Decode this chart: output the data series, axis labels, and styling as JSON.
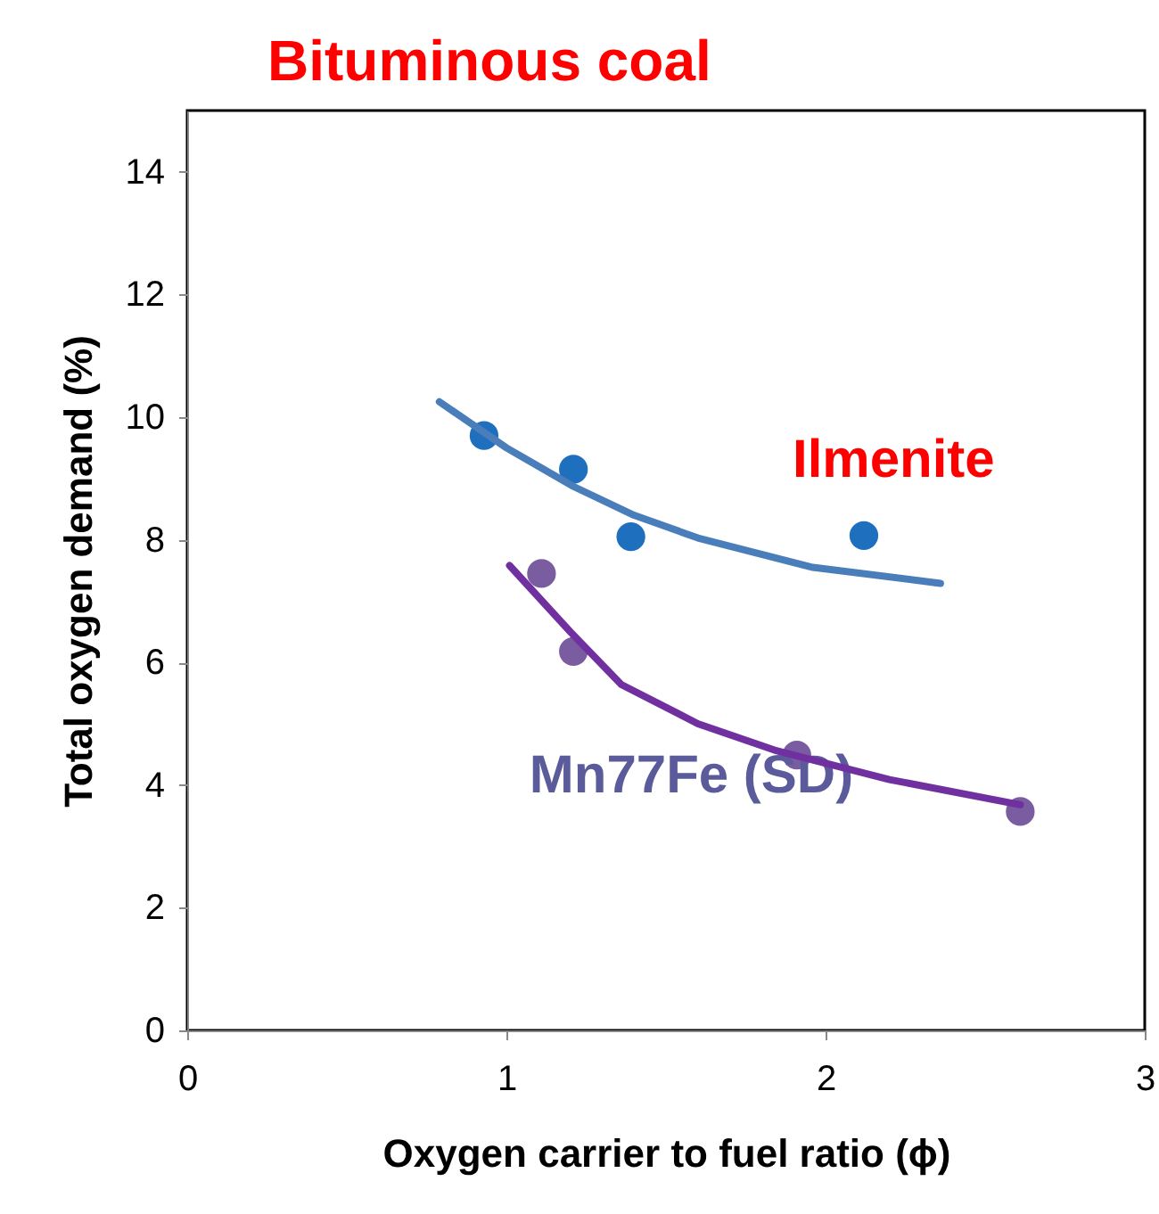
{
  "chart_data": {
    "type": "scatter",
    "title": "Bituminous coal",
    "xlabel": "Oxygen carrier to fuel ratio (ϕ)",
    "ylabel": "Total oxygen demand (%)",
    "series": [
      {
        "name": "Ilmenite",
        "color": "#1f6fbf",
        "x": [
          0.93,
          1.21,
          1.39,
          2.12
        ],
        "values": [
          9.7,
          9.15,
          8.05,
          8.07
        ]
      },
      {
        "name": "Mn77Fe (SD)",
        "color": "#7a5ca0",
        "x": [
          1.11,
          1.21,
          1.91,
          2.61
        ],
        "values": [
          7.45,
          6.18,
          4.49,
          3.57
        ]
      },
      {
        "type": "line",
        "marker": "none",
        "color": "#4a7ebb",
        "x": [
          0.79,
          1.0,
          1.21,
          1.4,
          1.6,
          1.96,
          2.36
        ],
        "values": [
          10.25,
          9.5,
          8.87,
          8.4,
          8.03,
          7.55,
          7.29
        ]
      },
      {
        "type": "line",
        "marker": "none",
        "color": "#7030a0",
        "x": [
          1.01,
          1.2,
          1.36,
          1.6,
          1.84,
          2.2,
          2.61
        ],
        "values": [
          7.58,
          6.5,
          5.64,
          5.0,
          4.57,
          4.09,
          3.68
        ]
      }
    ],
    "xlim": [
      0,
      3
    ],
    "xticks": [
      0,
      1,
      2,
      3
    ],
    "ylim": [
      0,
      15
    ],
    "yticks": [
      0,
      2,
      4,
      6,
      8,
      10,
      12,
      14
    ],
    "grid": false,
    "marker": "circle"
  }
}
